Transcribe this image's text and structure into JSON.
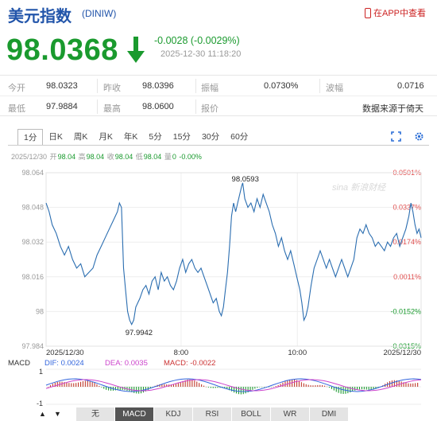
{
  "header": {
    "title": "美元指数",
    "code": "(DINIW)",
    "app_link": "在APP中查看"
  },
  "quote": {
    "price": "98.0368",
    "change": "-0.0028 (-0.0029%)",
    "datetime": "2025-12-30 11:18:20",
    "direction": "down",
    "color": "#1a9a2e"
  },
  "stats": {
    "row1": [
      {
        "label": "今开",
        "value": "98.0323"
      },
      {
        "label": "昨收",
        "value": "98.0396"
      },
      {
        "label": "振幅",
        "value": "0.0730%"
      },
      {
        "label": "波幅",
        "value": "0.0716"
      }
    ],
    "row2": [
      {
        "label": "最低",
        "value": "97.9884"
      },
      {
        "label": "最高",
        "value": "98.0600"
      },
      {
        "label": "报价",
        "value": "数据来源于倚天"
      }
    ]
  },
  "tabs": [
    "1分",
    "日K",
    "周K",
    "月K",
    "年K",
    "5分",
    "15分",
    "30分",
    "60分"
  ],
  "active_tab": "1分",
  "tool_icons": [
    "fullscreen-icon",
    "settings-icon"
  ],
  "ohlc": {
    "date": "2025/12/30",
    "open_label": "开",
    "open": "98.04",
    "high_label": "高",
    "high": "98.04",
    "close_label": "收",
    "close": "98.04",
    "low_label": "低",
    "low": "98.04",
    "vol_label": "量",
    "vol": "0",
    "pct": "-0.00%"
  },
  "chart_data": {
    "type": "line",
    "y_ticks_left": [
      "98.064",
      "98.048",
      "98.032",
      "98.016",
      "98",
      "97.984"
    ],
    "y_ticks_right": [
      "0.0501%",
      "0.0337%",
      "0.0174%",
      "0.0011%",
      "-0.0152%",
      "-0.0315%"
    ],
    "x_ticks": [
      "2025/12/30",
      "8:00",
      "10:00",
      "2025/12/30"
    ],
    "ylim": [
      97.984,
      98.064
    ],
    "annotations": {
      "high": "98.0593",
      "low": "97.9942"
    },
    "watermark": "sina 新浪财经",
    "series_points": [
      [
        0,
        98.05
      ],
      [
        3,
        98.046
      ],
      [
        6,
        98.04
      ],
      [
        10,
        98.036
      ],
      [
        14,
        98.03
      ],
      [
        18,
        98.026
      ],
      [
        22,
        98.03
      ],
      [
        26,
        98.024
      ],
      [
        30,
        98.02
      ],
      [
        34,
        98.022
      ],
      [
        38,
        98.016
      ],
      [
        42,
        98.018
      ],
      [
        46,
        98.02
      ],
      [
        50,
        98.026
      ],
      [
        54,
        98.03
      ],
      [
        58,
        98.034
      ],
      [
        62,
        98.038
      ],
      [
        66,
        98.042
      ],
      [
        70,
        98.046
      ],
      [
        72,
        98.05
      ],
      [
        74,
        98.048
      ],
      [
        76,
        98.02
      ],
      [
        78,
        98.01
      ],
      [
        80,
        98.0
      ],
      [
        82,
        97.996
      ],
      [
        84,
        97.994
      ],
      [
        86,
        97.996
      ],
      [
        88,
        98.002
      ],
      [
        90,
        98.004
      ],
      [
        92,
        98.006
      ],
      [
        95,
        98.01
      ],
      [
        98,
        98.012
      ],
      [
        101,
        98.008
      ],
      [
        104,
        98.014
      ],
      [
        107,
        98.016
      ],
      [
        110,
        98.01
      ],
      [
        113,
        98.018
      ],
      [
        116,
        98.014
      ],
      [
        119,
        98.016
      ],
      [
        122,
        98.012
      ],
      [
        125,
        98.01
      ],
      [
        128,
        98.014
      ],
      [
        131,
        98.02
      ],
      [
        134,
        98.024
      ],
      [
        137,
        98.018
      ],
      [
        140,
        98.022
      ],
      [
        143,
        98.024
      ],
      [
        146,
        98.02
      ],
      [
        149,
        98.018
      ],
      [
        152,
        98.02
      ],
      [
        155,
        98.016
      ],
      [
        158,
        98.012
      ],
      [
        161,
        98.008
      ],
      [
        164,
        98.004
      ],
      [
        167,
        98.006
      ],
      [
        170,
        98.0
      ],
      [
        172,
        97.998
      ],
      [
        174,
        98.002
      ],
      [
        176,
        98.01
      ],
      [
        178,
        98.018
      ],
      [
        180,
        98.03
      ],
      [
        182,
        98.044
      ],
      [
        184,
        98.05
      ],
      [
        186,
        98.046
      ],
      [
        188,
        98.05
      ],
      [
        190,
        98.054
      ],
      [
        192,
        98.058
      ],
      [
        193,
        98.0593
      ],
      [
        195,
        98.052
      ],
      [
        198,
        98.048
      ],
      [
        201,
        98.05
      ],
      [
        204,
        98.046
      ],
      [
        207,
        98.052
      ],
      [
        210,
        98.048
      ],
      [
        213,
        98.054
      ],
      [
        216,
        98.05
      ],
      [
        219,
        98.046
      ],
      [
        222,
        98.04
      ],
      [
        225,
        98.036
      ],
      [
        228,
        98.03
      ],
      [
        231,
        98.034
      ],
      [
        234,
        98.028
      ],
      [
        237,
        98.024
      ],
      [
        240,
        98.028
      ],
      [
        243,
        98.022
      ],
      [
        246,
        98.016
      ],
      [
        249,
        98.01
      ],
      [
        251,
        98.004
      ],
      [
        253,
        97.996
      ],
      [
        255,
        97.998
      ],
      [
        257,
        98.002
      ],
      [
        260,
        98.012
      ],
      [
        263,
        98.02
      ],
      [
        266,
        98.024
      ],
      [
        269,
        98.028
      ],
      [
        272,
        98.024
      ],
      [
        275,
        98.02
      ],
      [
        278,
        98.024
      ],
      [
        281,
        98.02
      ],
      [
        284,
        98.016
      ],
      [
        287,
        98.02
      ],
      [
        290,
        98.024
      ],
      [
        293,
        98.02
      ],
      [
        296,
        98.016
      ],
      [
        299,
        98.02
      ],
      [
        302,
        98.024
      ],
      [
        305,
        98.034
      ],
      [
        308,
        98.038
      ],
      [
        311,
        98.036
      ],
      [
        314,
        98.04
      ],
      [
        317,
        98.036
      ],
      [
        320,
        98.034
      ],
      [
        323,
        98.03
      ],
      [
        326,
        98.032
      ],
      [
        329,
        98.03
      ],
      [
        332,
        98.028
      ],
      [
        335,
        98.032
      ],
      [
        338,
        98.03
      ],
      [
        341,
        98.034
      ],
      [
        344,
        98.036
      ],
      [
        347,
        98.03
      ],
      [
        350,
        98.034
      ],
      [
        353,
        98.038
      ],
      [
        356,
        98.044
      ],
      [
        358,
        98.05
      ],
      [
        360,
        98.046
      ],
      [
        362,
        98.04
      ],
      [
        364,
        98.036
      ],
      [
        366,
        98.038
      ],
      [
        368,
        98.034
      ]
    ]
  },
  "macd": {
    "label": "MACD",
    "dif_label": "DIF:",
    "dif": "0.0024",
    "dea_label": "DEA:",
    "dea": "0.0035",
    "macd_label": "MACD:",
    "macd": "-0.0022",
    "dif_color": "#3366dd",
    "dea_color": "#cc44cc",
    "macd_color": "#cc3333",
    "y_ticks": [
      "1",
      "-1"
    ]
  },
  "bottom": {
    "nav_labels": [
      "▲",
      "▼"
    ],
    "indicators": [
      "无",
      "MACD",
      "KDJ",
      "RSI",
      "BOLL",
      "WR",
      "DMI"
    ],
    "active_indicator": "MACD"
  }
}
